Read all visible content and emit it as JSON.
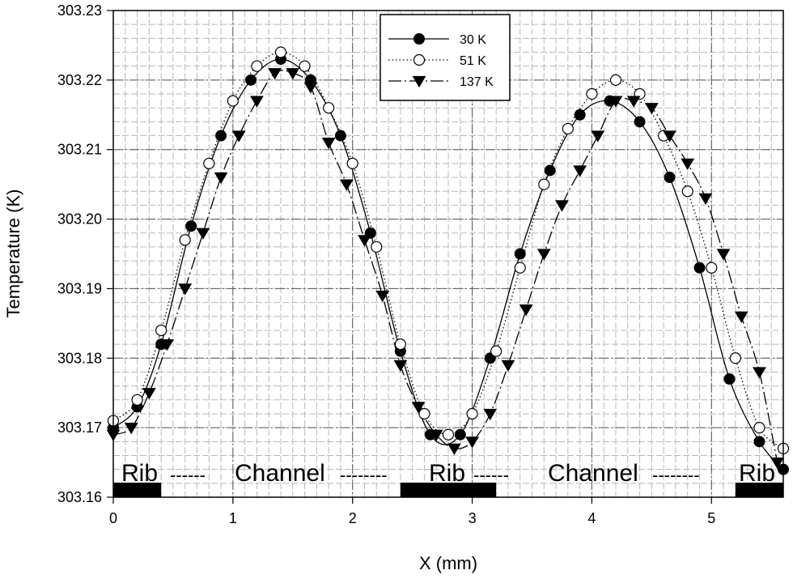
{
  "chart_data": {
    "type": "line",
    "xlabel": "X (mm)",
    "ylabel": "Temperature (K)",
    "xlim": [
      0,
      5.6
    ],
    "ylim": [
      303.16,
      303.23
    ],
    "x_ticks": [
      0,
      1,
      2,
      3,
      4,
      5
    ],
    "y_ticks": [
      303.16,
      303.17,
      303.18,
      303.19,
      303.2,
      303.21,
      303.22,
      303.23
    ],
    "y_tick_labels": [
      "303.16",
      "303.17",
      "303.18",
      "303.19",
      "303.20",
      "303.21",
      "303.22",
      "303.23"
    ],
    "grid": true,
    "legend_position": "top-center",
    "series": [
      {
        "name": "30 K",
        "marker": "filled-circle",
        "line": "solid",
        "x": [
          0.0,
          0.2,
          0.4,
          0.65,
          0.9,
          1.15,
          1.4,
          1.65,
          1.9,
          2.15,
          2.4,
          2.65,
          2.9,
          3.15,
          3.4,
          3.65,
          3.9,
          4.15,
          4.4,
          4.65,
          4.9,
          5.15,
          5.4,
          5.6
        ],
        "y": [
          303.17,
          303.173,
          303.182,
          303.199,
          303.212,
          303.22,
          303.223,
          303.22,
          303.212,
          303.198,
          303.181,
          303.169,
          303.169,
          303.18,
          303.195,
          303.207,
          303.215,
          303.217,
          303.214,
          303.206,
          303.193,
          303.177,
          303.168,
          303.164
        ]
      },
      {
        "name": "51 K",
        "marker": "open-circle",
        "line": "dotted",
        "x": [
          0.0,
          0.2,
          0.4,
          0.6,
          0.8,
          1.0,
          1.2,
          1.4,
          1.6,
          1.8,
          2.0,
          2.2,
          2.4,
          2.6,
          2.8,
          3.0,
          3.2,
          3.4,
          3.6,
          3.8,
          4.0,
          4.2,
          4.4,
          4.6,
          4.8,
          5.0,
          5.2,
          5.4,
          5.6
        ],
        "y": [
          303.171,
          303.174,
          303.184,
          303.197,
          303.208,
          303.217,
          303.222,
          303.224,
          303.222,
          303.216,
          303.208,
          303.196,
          303.182,
          303.172,
          303.169,
          303.172,
          303.181,
          303.193,
          303.205,
          303.213,
          303.218,
          303.22,
          303.218,
          303.212,
          303.204,
          303.193,
          303.18,
          303.17,
          303.167
        ]
      },
      {
        "name": "137 K",
        "marker": "filled-triangle-down",
        "line": "dash-dot",
        "x": [
          0.0,
          0.15,
          0.3,
          0.45,
          0.6,
          0.75,
          0.9,
          1.05,
          1.2,
          1.35,
          1.5,
          1.65,
          1.8,
          1.95,
          2.1,
          2.25,
          2.4,
          2.55,
          2.7,
          2.85,
          3.0,
          3.15,
          3.3,
          3.45,
          3.6,
          3.75,
          3.9,
          4.05,
          4.2,
          4.35,
          4.5,
          4.65,
          4.8,
          4.95,
          5.1,
          5.25,
          5.4,
          5.55
        ],
        "y": [
          303.169,
          303.17,
          303.175,
          303.182,
          303.19,
          303.198,
          303.206,
          303.212,
          303.217,
          303.221,
          303.221,
          303.219,
          303.211,
          303.205,
          303.197,
          303.189,
          303.179,
          303.173,
          303.169,
          303.167,
          303.168,
          303.172,
          303.179,
          303.187,
          303.195,
          303.202,
          303.207,
          303.212,
          303.217,
          303.217,
          303.216,
          303.212,
          303.208,
          303.203,
          303.195,
          303.186,
          303.178,
          303.165
        ]
      }
    ],
    "annotations": {
      "rib_label_1": "Rib",
      "dash_1": "------",
      "channel_label_1": "Channel",
      "dash_2": "--------",
      "rib_label_2": "Rib",
      "dash_3": "------",
      "channel_label_2": "Channel",
      "dash_4": "--------",
      "rib_label_3": "Rib"
    },
    "rib_bars": [
      [
        0,
        0.4
      ],
      [
        2.4,
        3.2
      ],
      [
        5.2,
        5.6
      ]
    ]
  }
}
